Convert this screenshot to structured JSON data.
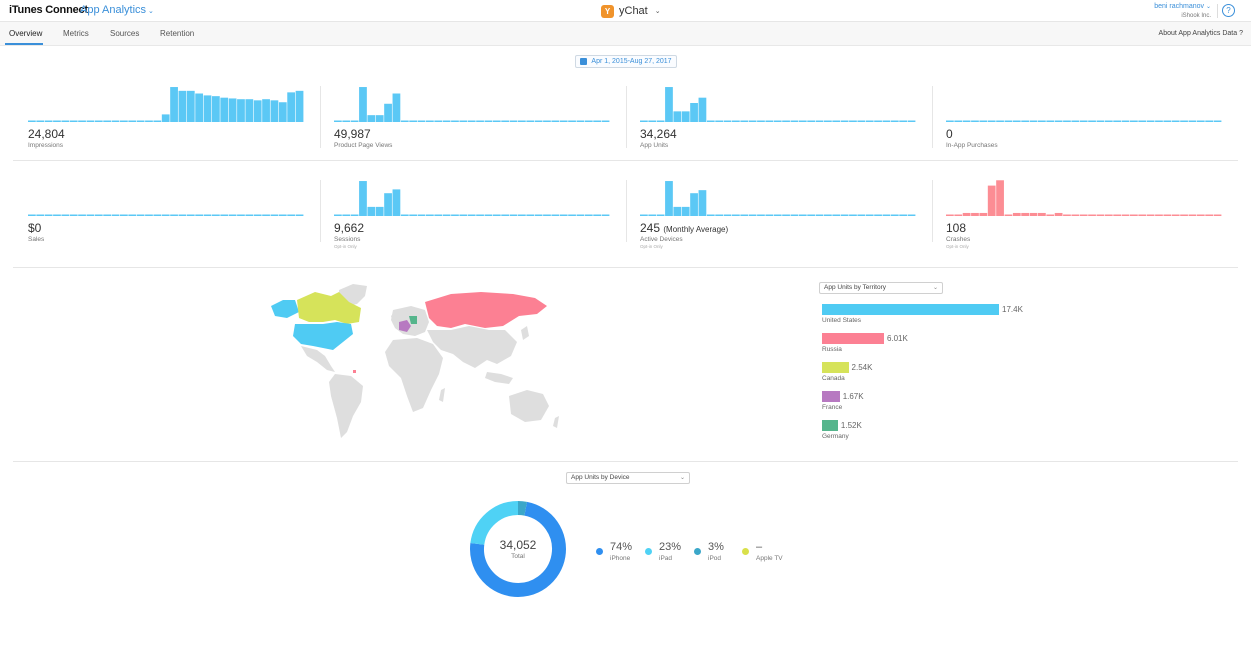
{
  "header": {
    "brand": "iTunes Connect",
    "module": "App Analytics",
    "app_name": "yChat",
    "user_name": "beni rachmanov",
    "org_name": "iShook Inc.",
    "help_glyph": "?"
  },
  "tabs": [
    {
      "label": "Overview",
      "active": true
    },
    {
      "label": "Metrics"
    },
    {
      "label": "Sources"
    },
    {
      "label": "Retention"
    }
  ],
  "about_link": "About App Analytics Data",
  "about_glyph": "?",
  "date_range": "Apr 1, 2015-Aug 27, 2017",
  "metrics": [
    {
      "value": "24,804",
      "label": "Impressions",
      "color": "#5bc8f5",
      "bars": [
        0,
        0,
        0,
        0,
        0,
        0,
        0,
        0,
        0,
        0,
        0,
        0,
        0,
        0,
        0,
        0,
        0.2,
        0.92,
        0.82,
        0.82,
        0.75,
        0.7,
        0.68,
        0.64,
        0.62,
        0.6,
        0.6,
        0.57,
        0.6,
        0.57,
        0.52,
        0.78,
        0.82
      ]
    },
    {
      "value": "49,987",
      "label": "Product Page Views",
      "color": "#5bc8f5",
      "bars": [
        0,
        0,
        0,
        0.92,
        0.18,
        0.18,
        0.48,
        0.75,
        0,
        0,
        0,
        0,
        0,
        0,
        0,
        0,
        0,
        0,
        0,
        0,
        0,
        0,
        0,
        0,
        0,
        0,
        0,
        0,
        0,
        0,
        0,
        0,
        0
      ]
    },
    {
      "value": "34,264",
      "label": "App Units",
      "color": "#5bc8f5",
      "bars": [
        0,
        0,
        0,
        0.92,
        0.28,
        0.28,
        0.5,
        0.64,
        0,
        0,
        0,
        0,
        0,
        0,
        0,
        0,
        0,
        0,
        0,
        0,
        0,
        0,
        0,
        0,
        0,
        0,
        0,
        0,
        0,
        0,
        0,
        0,
        0
      ]
    },
    {
      "value": "0",
      "label": "In-App Purchases",
      "color": "#5bc8f5",
      "bars": [
        0,
        0,
        0,
        0,
        0,
        0,
        0,
        0,
        0,
        0,
        0,
        0,
        0,
        0,
        0,
        0,
        0,
        0,
        0,
        0,
        0,
        0,
        0,
        0,
        0,
        0,
        0,
        0,
        0,
        0,
        0,
        0,
        0
      ]
    },
    {
      "value": "$0",
      "label": "Sales",
      "color": "#5bc8f5",
      "bars": [
        0,
        0,
        0,
        0,
        0,
        0,
        0,
        0,
        0,
        0,
        0,
        0,
        0,
        0,
        0,
        0,
        0,
        0,
        0,
        0,
        0,
        0,
        0,
        0,
        0,
        0,
        0,
        0,
        0,
        0,
        0,
        0,
        0
      ]
    },
    {
      "value": "9,662",
      "label": "Sessions",
      "note": "Opt-in Only",
      "color": "#5bc8f5",
      "bars": [
        0,
        0,
        0,
        0.92,
        0.24,
        0.24,
        0.6,
        0.7,
        0,
        0,
        0,
        0,
        0,
        0,
        0,
        0,
        0,
        0,
        0,
        0,
        0,
        0,
        0,
        0,
        0,
        0,
        0,
        0,
        0,
        0,
        0,
        0,
        0
      ]
    },
    {
      "value": "245",
      "value_suffix": "(Monthly Average)",
      "label": "Active Devices",
      "note": "Opt-in Only",
      "color": "#5bc8f5",
      "bars": [
        0,
        0,
        0,
        0.92,
        0.24,
        0.24,
        0.6,
        0.68,
        0,
        0,
        0,
        0,
        0,
        0,
        0,
        0,
        0,
        0,
        0,
        0,
        0,
        0,
        0,
        0,
        0,
        0,
        0,
        0,
        0,
        0,
        0,
        0,
        0
      ]
    },
    {
      "value": "108",
      "label": "Crashes",
      "note": "Opt-in Only",
      "color": "#fc8d94",
      "bars": [
        0,
        0,
        0.08,
        0.08,
        0.08,
        0.8,
        0.94,
        0,
        0.08,
        0.08,
        0.08,
        0.08,
        0,
        0.08,
        0,
        0,
        0,
        0,
        0,
        0,
        0,
        0,
        0,
        0,
        0,
        0,
        0,
        0,
        0,
        0,
        0,
        0,
        0
      ]
    }
  ],
  "territory": {
    "dropdown": "App Units by Territory",
    "items": [
      {
        "name": "United States",
        "value": "17.4K",
        "color": "#4fcbf3",
        "share": 1.0
      },
      {
        "name": "Russia",
        "value": "6.01K",
        "color": "#fc8093",
        "share": 0.35
      },
      {
        "name": "Canada",
        "value": "2.54K",
        "color": "#d6e35a",
        "share": 0.15
      },
      {
        "name": "France",
        "value": "1.67K",
        "color": "#b779c1",
        "share": 0.1
      },
      {
        "name": "Germany",
        "value": "1.52K",
        "color": "#55b58c",
        "share": 0.09
      }
    ]
  },
  "device": {
    "dropdown": "App Units by Device",
    "total": "34,052",
    "total_label": "Total",
    "items": [
      {
        "pct": "74%",
        "name": "iPhone",
        "color": "#2f8ff0",
        "share": 0.74
      },
      {
        "pct": "23%",
        "name": "iPad",
        "color": "#4fd2f5",
        "share": 0.23
      },
      {
        "pct": "3%",
        "name": "iPod",
        "color": "#3ba7c9",
        "share": 0.03
      },
      {
        "pct": "–",
        "name": "Apple TV",
        "color": "#d9e04a",
        "share": 0
      }
    ]
  },
  "map_colors": {
    "land": "#dedede",
    "us": "#4fcbf3",
    "canada": "#d6e35a",
    "russia": "#fc8093",
    "france": "#b779c1",
    "germany": "#55b58c"
  }
}
